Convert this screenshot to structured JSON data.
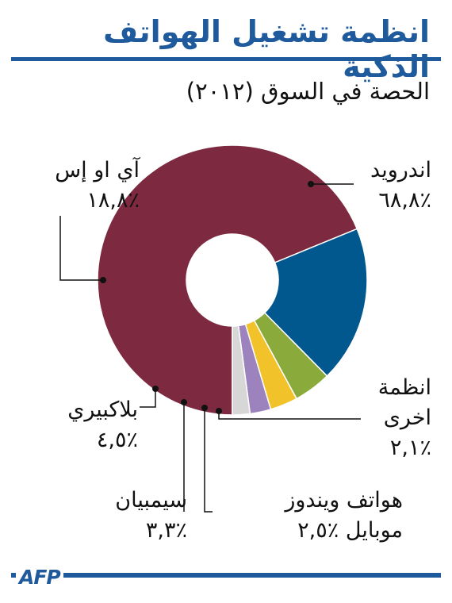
{
  "title": "انظمة تشغيل الهواتف الذكية",
  "subtitle": "الحصة في السوق (٢٠١٢)",
  "source": "AFP",
  "chart_data": {
    "type": "pie",
    "title": "انظمة تشغيل الهواتف الذكية",
    "subtitle": "الحصة في السوق (٢٠١٢)",
    "donut": true,
    "unit": "%",
    "slices": [
      {
        "label": "اندرويد",
        "value": 68.8,
        "value_text": "٪٦٨,٨",
        "color": "#7d2a40"
      },
      {
        "label": "آي او إس",
        "value": 18.8,
        "value_text": "٪١٨,٨",
        "color": "#00588f"
      },
      {
        "label": "بلاكبيري",
        "value": 4.5,
        "value_text": "٪٤,٥",
        "color": "#8aab3c"
      },
      {
        "label": "سيمبيان",
        "value": 3.3,
        "value_text": "٪٣,٣",
        "color": "#f2c22b"
      },
      {
        "label": "هواتف ويندوز موبايل",
        "label_lines": [
          "هواتف ويندوز",
          "موبايل"
        ],
        "value": 2.5,
        "value_text": "٪٢,٥",
        "color": "#9d83bd"
      },
      {
        "label": "انظمة اخرى",
        "label_lines": [
          "انظمة",
          "اخرى"
        ],
        "value": 2.1,
        "value_text": "٪٢,١",
        "color": "#d7d7d7"
      }
    ]
  }
}
